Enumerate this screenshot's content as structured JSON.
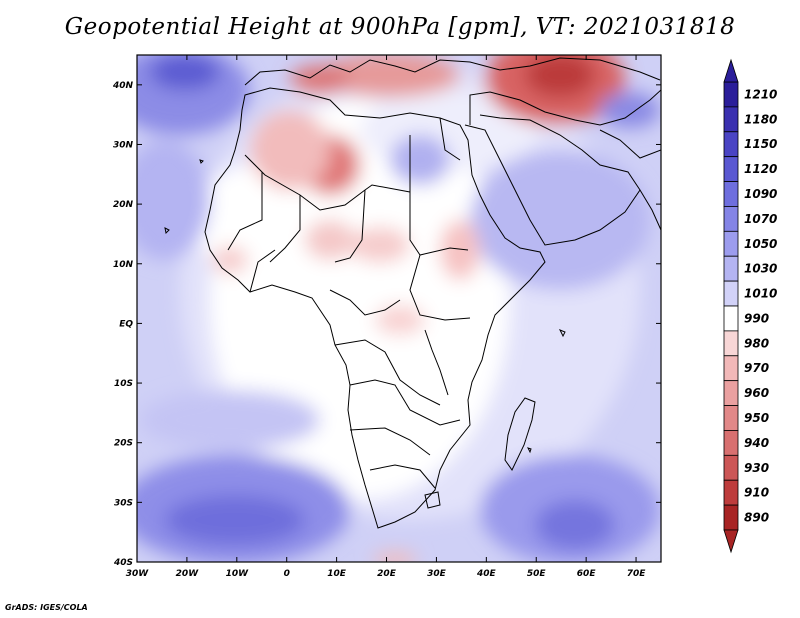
{
  "title": "Geopotential Height at 900hPa [gpm], VT: 2021031818",
  "credit": "GrADS: IGES/COLA",
  "map": {
    "region": "Africa",
    "field": "Geopotential Height at 900hPa",
    "units": "gpm",
    "valid_time": "2021031818",
    "lon_range": [
      -30,
      75
    ],
    "lat_range": [
      -40,
      45
    ],
    "x_ticks": [
      "30W",
      "20W",
      "10W",
      "0",
      "10E",
      "20E",
      "30E",
      "40E",
      "50E",
      "60E",
      "70E"
    ],
    "y_ticks": [
      "40N",
      "30N",
      "20N",
      "10N",
      "EQ",
      "10S",
      "20S",
      "30S",
      "40S"
    ]
  },
  "colorbar": {
    "levels": [
      "1210",
      "1180",
      "1150",
      "1120",
      "1090",
      "1070",
      "1050",
      "1030",
      "1010",
      "990",
      "980",
      "970",
      "960",
      "950",
      "940",
      "930",
      "910",
      "890"
    ],
    "colors": [
      "#2b1e9a",
      "#3a30b0",
      "#4a44c4",
      "#5a58d2",
      "#6e6ede",
      "#8484e6",
      "#9c9cee",
      "#b4b4f2",
      "#d2d2f8",
      "#ffffff",
      "#f8d6d6",
      "#f2b8b8",
      "#eaa0a0",
      "#e28888",
      "#d87070",
      "#cc5656",
      "#be3c3c",
      "#a82424"
    ]
  }
}
